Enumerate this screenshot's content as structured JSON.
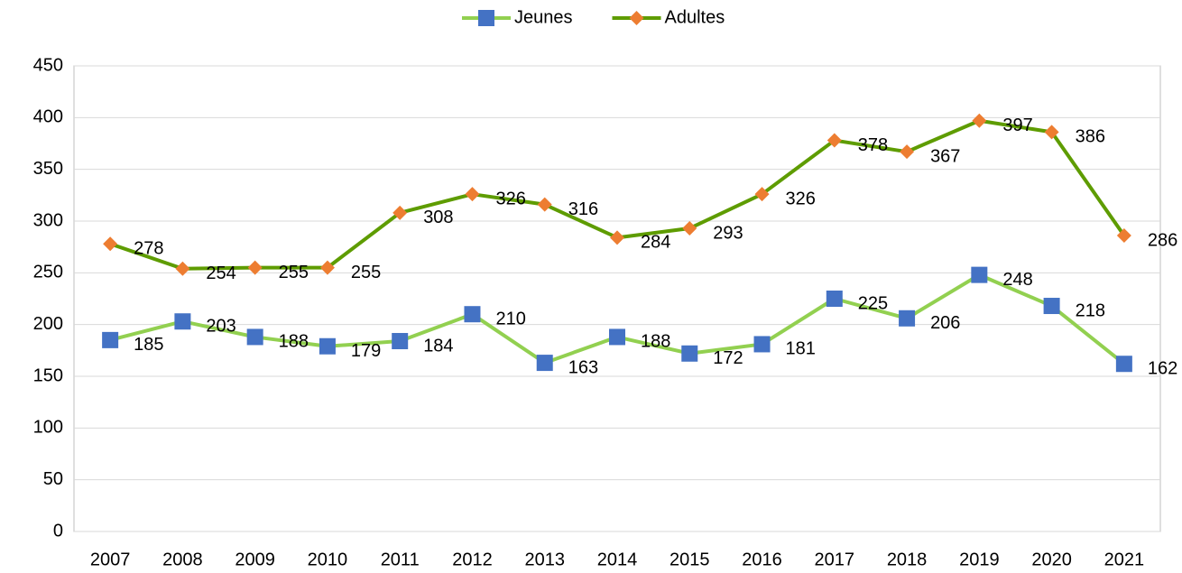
{
  "chart_data": {
    "type": "line",
    "categories": [
      "2007",
      "2008",
      "2009",
      "2010",
      "2011",
      "2012",
      "2013",
      "2014",
      "2015",
      "2016",
      "2017",
      "2018",
      "2019",
      "2020",
      "2021"
    ],
    "series": [
      {
        "name": "Jeunes",
        "color": "#92d050",
        "marker_color": "#4472c4",
        "marker": "square",
        "values": [
          185,
          203,
          188,
          179,
          184,
          210,
          163,
          188,
          172,
          181,
          225,
          206,
          248,
          218,
          162
        ]
      },
      {
        "name": "Adultes",
        "color": "#5e9c00",
        "marker_color": "#ed7d31",
        "marker": "diamond",
        "values": [
          278,
          254,
          255,
          255,
          308,
          326,
          316,
          284,
          293,
          326,
          378,
          367,
          397,
          386,
          286
        ]
      }
    ],
    "ylim": [
      0,
      450
    ],
    "yticks": [
      0,
      50,
      100,
      150,
      200,
      250,
      300,
      350,
      400,
      450
    ],
    "grid": true,
    "legend": "top"
  }
}
